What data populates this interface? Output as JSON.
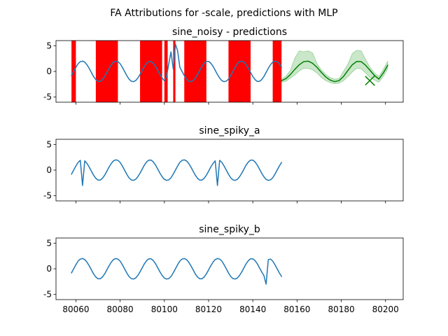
{
  "figure": {
    "suptitle": "FA Attributions for -scale, predictions with MLP"
  },
  "chart_data": [
    {
      "type": "line",
      "title": "sine_noisy - predictions",
      "xlim": [
        80051,
        80208
      ],
      "ylim": [
        -6,
        6
      ],
      "yticks": [
        -5,
        0,
        5
      ],
      "xticks": [
        80060,
        80080,
        80100,
        80120,
        80140,
        80160,
        80180,
        80200
      ],
      "xtick_labels_visible": false,
      "colors": {
        "series": "#1f77b4",
        "prediction": "#008000",
        "band": "#2ca02c",
        "attribution": "#ff0000"
      },
      "attribution_bands": [
        [
          80058,
          80060
        ],
        [
          80069,
          80079
        ],
        [
          80089,
          80099
        ],
        [
          80100,
          80101.5
        ],
        [
          80104,
          80105
        ],
        [
          80109,
          80119
        ],
        [
          80129,
          80139
        ],
        [
          80149,
          80153
        ]
      ],
      "series": [
        {
          "name": "",
          "x": [
            80058,
            80059,
            80060,
            80061,
            80062,
            80063,
            80064,
            80065,
            80066,
            80067,
            80068,
            80069,
            80070,
            80071,
            80072,
            80073,
            80074,
            80075,
            80076,
            80077,
            80078,
            80079,
            80080,
            80081,
            80082,
            80083,
            80084,
            80085,
            80086,
            80087,
            80088,
            80089,
            80090,
            80091,
            80092,
            80093,
            80094,
            80095,
            80096,
            80097,
            80098,
            80099,
            80100,
            80101,
            80102,
            80103,
            80104,
            80105,
            80106,
            80107,
            80108,
            80109,
            80110,
            80111,
            80112,
            80113,
            80114,
            80115,
            80116,
            80117,
            80118,
            80119,
            80120,
            80121,
            80122,
            80123,
            80124,
            80125,
            80126,
            80127,
            80128,
            80129,
            80130,
            80131,
            80132,
            80133,
            80134,
            80135,
            80136,
            80137,
            80138,
            80139,
            80140,
            80141,
            80142,
            80143,
            80144,
            80145,
            80146,
            80147,
            80148,
            80149,
            80150,
            80151,
            80152,
            80153
          ],
          "y": [
            -0.8,
            0.0,
            0.8,
            1.5,
            1.9,
            2.0,
            1.8,
            1.3,
            0.6,
            -0.2,
            -1.0,
            -1.6,
            -1.95,
            -1.95,
            -1.6,
            -1.0,
            -0.2,
            0.6,
            1.3,
            1.8,
            2.0,
            1.9,
            1.5,
            0.8,
            0.0,
            -0.8,
            -1.5,
            -1.9,
            -2.0,
            -1.8,
            -1.3,
            -0.6,
            0.2,
            1.0,
            1.6,
            1.95,
            1.95,
            1.6,
            1.0,
            0.2,
            -0.6,
            -1.3,
            -1.8,
            -1.0,
            1.5,
            3.8,
            0.5,
            5.3,
            4.0,
            0.8,
            0.0,
            -0.8,
            -1.5,
            -1.9,
            -2.0,
            -1.8,
            -1.3,
            -0.6,
            0.2,
            1.0,
            1.6,
            1.95,
            1.95,
            1.6,
            1.0,
            0.2,
            -0.6,
            -1.3,
            -1.8,
            -2.0,
            -1.9,
            -1.5,
            -0.8,
            0.0,
            0.8,
            1.5,
            1.9,
            2.0,
            1.8,
            1.3,
            0.6,
            -0.2,
            -1.0,
            -1.6,
            -1.95,
            -1.95,
            -1.6,
            -1.0,
            -0.2,
            0.6,
            1.3,
            1.8,
            2.0,
            1.9,
            1.5,
            0.8
          ]
        },
        {
          "name": "",
          "x": [
            80153,
            80155,
            80157,
            80159,
            80161,
            80163,
            80165,
            80167,
            80169,
            80171,
            80173,
            80175,
            80177,
            80179,
            80181,
            80183,
            80185,
            80187,
            80189,
            80191,
            80193,
            80195,
            80197,
            80199,
            80201
          ],
          "y": [
            -1.8,
            -1.4,
            -0.6,
            0.4,
            1.3,
            1.9,
            2.0,
            1.6,
            0.8,
            -0.2,
            -1.1,
            -1.7,
            -2.0,
            -1.8,
            -1.0,
            0.2,
            1.3,
            1.95,
            1.9,
            1.2,
            0.2,
            -0.8,
            -1.5,
            -0.3,
            1.2
          ]
        },
        {
          "name": "",
          "x": [
            80191,
            80195
          ],
          "y": [
            -2.6,
            -0.9
          ]
        },
        {
          "name": "",
          "x": [
            80191,
            80195
          ],
          "y": [
            -1.0,
            -2.7
          ]
        }
      ],
      "band": {
        "x": [
          80153,
          80155,
          80157,
          80159,
          80161,
          80163,
          80165,
          80167,
          80169,
          80171,
          80173,
          80175,
          80177,
          80179,
          80181,
          80183,
          80185,
          80187,
          80189,
          80191,
          80193,
          80195,
          80197,
          80199,
          80201
        ],
        "upper": [
          -1.5,
          -0.9,
          0.2,
          2.6,
          4.0,
          3.8,
          4.0,
          3.6,
          1.5,
          0.3,
          -0.6,
          -1.2,
          -1.5,
          -1.4,
          0.0,
          1.4,
          3.5,
          4.1,
          4.0,
          2.3,
          0.8,
          -0.3,
          -1.0,
          0.4,
          2.0
        ],
        "lower": [
          -2.1,
          -1.9,
          -1.3,
          -0.7,
          0.1,
          0.6,
          0.6,
          0.3,
          -0.3,
          -1.2,
          -1.8,
          -2.2,
          -2.4,
          -2.3,
          -1.8,
          -1.0,
          -0.1,
          0.6,
          0.5,
          -0.3,
          -1.2,
          -1.7,
          -2.1,
          -1.0,
          0.5
        ]
      }
    },
    {
      "type": "line",
      "title": "sine_spiky_a",
      "xlim": [
        80051,
        80208
      ],
      "ylim": [
        -6,
        6
      ],
      "yticks": [
        -5,
        0,
        5
      ],
      "xticks": [
        80060,
        80080,
        80100,
        80120,
        80140,
        80160,
        80180,
        80200
      ],
      "xtick_labels_visible": false,
      "colors": {
        "series": "#1f77b4"
      },
      "series": [
        {
          "name": "",
          "x": [
            80058,
            80059,
            80060,
            80061,
            80062,
            80063,
            80064,
            80065,
            80066,
            80067,
            80068,
            80069,
            80070,
            80071,
            80072,
            80073,
            80074,
            80075,
            80076,
            80077,
            80078,
            80079,
            80080,
            80081,
            80082,
            80083,
            80084,
            80085,
            80086,
            80087,
            80088,
            80089,
            80090,
            80091,
            80092,
            80093,
            80094,
            80095,
            80096,
            80097,
            80098,
            80099,
            80100,
            80101,
            80102,
            80103,
            80104,
            80105,
            80106,
            80107,
            80108,
            80109,
            80110,
            80111,
            80112,
            80113,
            80114,
            80115,
            80116,
            80117,
            80118,
            80119,
            80120,
            80121,
            80122,
            80123,
            80124,
            80125,
            80126,
            80127,
            80128,
            80129,
            80130,
            80131,
            80132,
            80133,
            80134,
            80135,
            80136,
            80137,
            80138,
            80139,
            80140,
            80141,
            80142,
            80143,
            80144,
            80145,
            80146,
            80147,
            80148,
            80149,
            80150,
            80151,
            80152,
            80153
          ],
          "y": [
            -0.8,
            0.0,
            0.8,
            1.5,
            1.9,
            -3.0,
            1.8,
            1.3,
            0.6,
            -0.2,
            -1.0,
            -1.6,
            -1.95,
            -1.95,
            -1.6,
            -1.0,
            -0.2,
            0.6,
            1.3,
            1.8,
            2.0,
            1.9,
            1.5,
            0.8,
            0.0,
            -0.8,
            -1.5,
            -1.9,
            -2.0,
            -1.8,
            -1.3,
            -0.6,
            0.2,
            1.0,
            1.6,
            1.95,
            1.95,
            1.6,
            1.0,
            0.2,
            -0.6,
            -1.3,
            -1.8,
            -2.0,
            -1.9,
            -1.5,
            -0.8,
            0.0,
            0.8,
            1.5,
            1.9,
            2.0,
            1.8,
            1.3,
            0.6,
            -0.2,
            -1.0,
            -1.6,
            -1.95,
            -1.95,
            -1.6,
            -1.0,
            -0.2,
            0.6,
            1.3,
            1.8,
            -3.0,
            1.9,
            1.5,
            0.8,
            0.0,
            -0.8,
            -1.5,
            -1.9,
            -2.0,
            -1.8,
            -1.3,
            -0.6,
            0.2,
            1.0,
            1.6,
            1.95,
            1.95,
            1.6,
            1.0,
            0.2,
            -0.6,
            -1.3,
            -1.8,
            -2.0,
            -1.9,
            -1.5,
            -0.8,
            0.0,
            0.8,
            1.5
          ]
        }
      ]
    },
    {
      "type": "line",
      "title": "sine_spiky_b",
      "xlim": [
        80051,
        80208
      ],
      "ylim": [
        -6,
        6
      ],
      "yticks": [
        -5,
        0,
        5
      ],
      "xticks": [
        80060,
        80080,
        80100,
        80120,
        80140,
        80160,
        80180,
        80200
      ],
      "xtick_labels_visible": true,
      "colors": {
        "series": "#1f77b4"
      },
      "series": [
        {
          "name": "",
          "x": [
            80058,
            80059,
            80060,
            80061,
            80062,
            80063,
            80064,
            80065,
            80066,
            80067,
            80068,
            80069,
            80070,
            80071,
            80072,
            80073,
            80074,
            80075,
            80076,
            80077,
            80078,
            80079,
            80080,
            80081,
            80082,
            80083,
            80084,
            80085,
            80086,
            80087,
            80088,
            80089,
            80090,
            80091,
            80092,
            80093,
            80094,
            80095,
            80096,
            80097,
            80098,
            80099,
            80100,
            80101,
            80102,
            80103,
            80104,
            80105,
            80106,
            80107,
            80108,
            80109,
            80110,
            80111,
            80112,
            80113,
            80114,
            80115,
            80116,
            80117,
            80118,
            80119,
            80120,
            80121,
            80122,
            80123,
            80124,
            80125,
            80126,
            80127,
            80128,
            80129,
            80130,
            80131,
            80132,
            80133,
            80134,
            80135,
            80136,
            80137,
            80138,
            80139,
            80140,
            80141,
            80142,
            80143,
            80144,
            80145,
            80146,
            80147,
            80148,
            80149,
            80150,
            80151,
            80152,
            80153
          ],
          "y": [
            -0.8,
            0.0,
            0.8,
            1.5,
            1.9,
            2.0,
            1.8,
            1.3,
            0.6,
            -0.2,
            -1.0,
            -1.6,
            -1.95,
            -1.95,
            -1.6,
            -1.0,
            -0.2,
            0.6,
            1.3,
            1.8,
            2.0,
            1.9,
            1.5,
            0.8,
            0.0,
            -0.8,
            -1.5,
            -1.9,
            -2.0,
            -1.8,
            -1.3,
            -0.6,
            0.2,
            1.0,
            1.6,
            1.95,
            1.95,
            1.6,
            1.0,
            0.2,
            -0.6,
            -1.3,
            -1.8,
            -2.0,
            -1.9,
            -1.5,
            -0.8,
            0.0,
            0.8,
            1.5,
            1.9,
            2.0,
            1.8,
            1.3,
            0.6,
            -0.2,
            -1.0,
            -1.6,
            -1.95,
            -1.95,
            -1.6,
            -1.0,
            -0.2,
            0.6,
            1.3,
            1.8,
            2.0,
            1.9,
            1.5,
            0.8,
            0.0,
            -0.8,
            -1.5,
            -1.9,
            -2.0,
            -1.8,
            -1.3,
            -0.6,
            0.2,
            1.0,
            1.6,
            1.95,
            1.95,
            1.6,
            1.0,
            0.2,
            -0.6,
            -1.3,
            -3.0,
            1.8,
            1.9,
            1.5,
            0.8,
            0.0,
            -0.8,
            -1.5
          ]
        }
      ]
    }
  ]
}
